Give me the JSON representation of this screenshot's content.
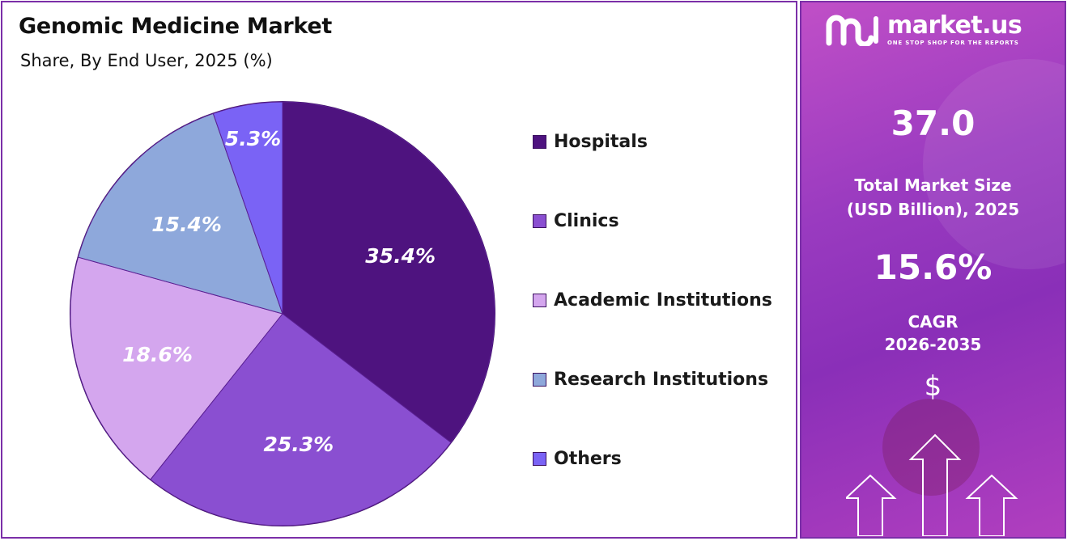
{
  "title": "Genomic Medicine Market",
  "subtitle": "Share, By End User, 2025 (%)",
  "chart_data": {
    "type": "pie",
    "title": "Genomic Medicine Market",
    "subtitle": "Share, By End User, 2025 (%)",
    "categories": [
      "Hospitals",
      "Clinics",
      "Academic Institutions",
      "Research Institutions",
      "Others"
    ],
    "values": [
      35.4,
      25.3,
      18.6,
      15.4,
      5.3
    ],
    "labels": [
      "35.4%",
      "25.3%",
      "18.6%",
      "15.4%",
      "5.3%"
    ],
    "colors": [
      "#4e137f",
      "#8a4fd1",
      "#d4a6ee",
      "#8ea8db",
      "#7a63f5"
    ],
    "legend_position": "right"
  },
  "sidebar": {
    "brand_name": "market.us",
    "brand_tagline": "ONE STOP SHOP FOR THE REPORTS",
    "market_size_value": "37.0",
    "market_size_label_line1": "Total Market Size",
    "market_size_label_line2": "(USD Billion), 2025",
    "cagr_value": "15.6%",
    "cagr_label_line1": "CAGR",
    "cagr_label_line2": "2026-2035",
    "currency_symbol": "$",
    "icons": [
      "market-us-logo-icon",
      "arrow-up-icon",
      "dollar-icon"
    ]
  }
}
